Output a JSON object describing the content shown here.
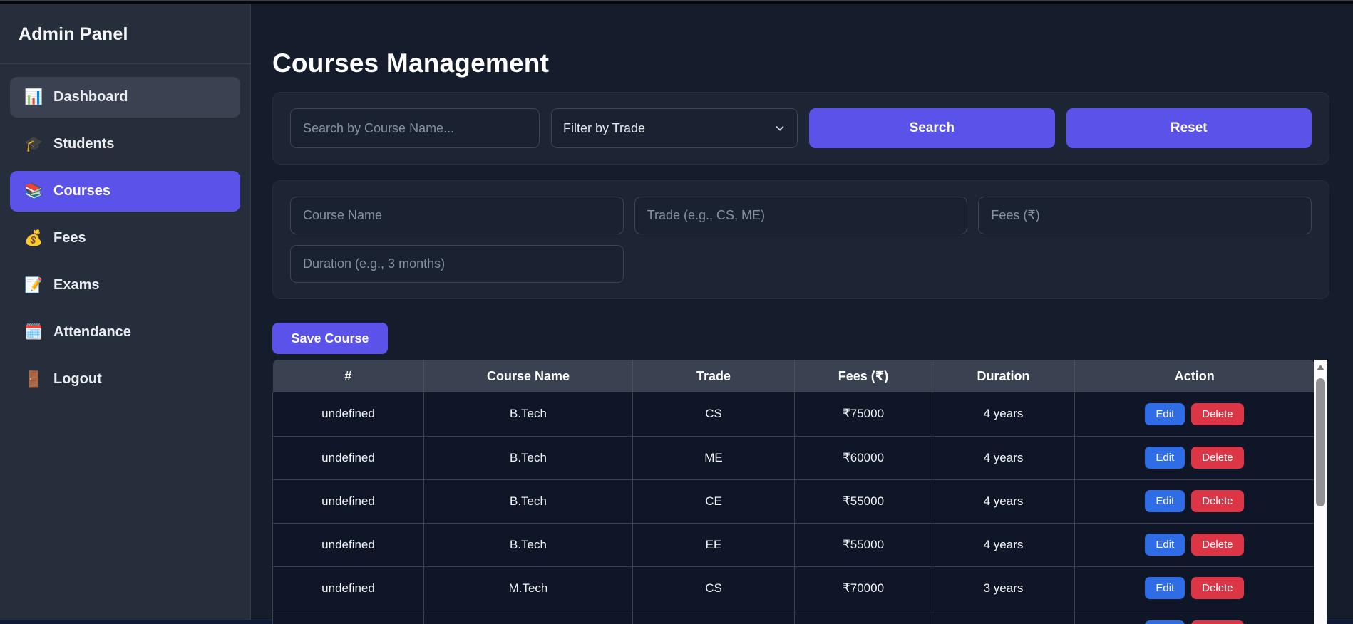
{
  "sidebar": {
    "title": "Admin Panel",
    "items": [
      {
        "label": "Dashboard",
        "icon": "📊",
        "state": "hover"
      },
      {
        "label": "Students",
        "icon": "🎓",
        "state": ""
      },
      {
        "label": "Courses",
        "icon": "📚",
        "state": "active"
      },
      {
        "label": "Fees",
        "icon": "💰",
        "state": ""
      },
      {
        "label": "Exams",
        "icon": "📝",
        "state": ""
      },
      {
        "label": "Attendance",
        "icon": "🗓️",
        "state": ""
      },
      {
        "label": "Logout",
        "icon": "🚪",
        "state": ""
      }
    ]
  },
  "header": {
    "title": "Courses Management"
  },
  "filter_bar": {
    "search_placeholder": "Search by Course Name...",
    "trade_filter_value": "Filter by Trade",
    "search_button": "Search",
    "reset_button": "Reset"
  },
  "course_form": {
    "course_name_placeholder": "Course Name",
    "trade_placeholder": "Trade (e.g., CS, ME)",
    "fees_placeholder": "Fees (₹)",
    "duration_placeholder": "Duration (e.g., 3 months)",
    "save_button": "Save Course"
  },
  "table": {
    "headers": [
      "#",
      "Course Name",
      "Trade",
      "Fees (₹)",
      "Duration",
      "Action"
    ],
    "edit_label": "Edit",
    "delete_label": "Delete",
    "rows": [
      {
        "id": "undefined",
        "course": "B.Tech",
        "trade": "CS",
        "fees": "₹75000",
        "duration": "4 years"
      },
      {
        "id": "undefined",
        "course": "B.Tech",
        "trade": "ME",
        "fees": "₹60000",
        "duration": "4 years"
      },
      {
        "id": "undefined",
        "course": "B.Tech",
        "trade": "CE",
        "fees": "₹55000",
        "duration": "4 years"
      },
      {
        "id": "undefined",
        "course": "B.Tech",
        "trade": "EE",
        "fees": "₹55000",
        "duration": "4 years"
      },
      {
        "id": "undefined",
        "course": "M.Tech",
        "trade": "CS",
        "fees": "₹70000",
        "duration": "3 years"
      },
      {
        "id": "",
        "course": "",
        "trade": "",
        "fees": "",
        "duration": ""
      }
    ]
  },
  "colors": {
    "accent_purple": "#5b52e9",
    "edit_blue": "#2e6de5",
    "delete_red": "#dc3545",
    "sidebar_bg": "#262d3b",
    "panel_bg": "#1d2433",
    "table_row_bg": "#0f1627",
    "table_header_bg": "#3a4150"
  }
}
